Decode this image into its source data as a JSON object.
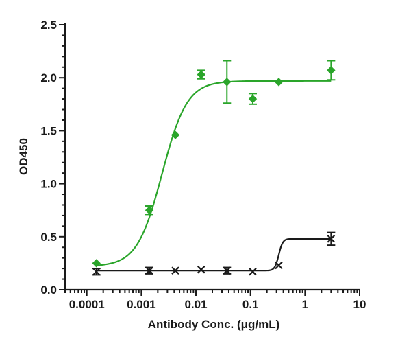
{
  "chart_data": {
    "type": "scatter",
    "xlabel": "Antibody Conc. (μg/mL)",
    "ylabel": "OD450",
    "xscale": "log",
    "xlim": [
      4e-05,
      10
    ],
    "ylim": [
      0,
      2.5
    ],
    "x_ticks": [
      0.0001,
      0.001,
      0.01,
      0.1,
      1,
      10
    ],
    "x_tick_labels": [
      "0.0001",
      "0.001",
      "0.01",
      "0.1",
      "1",
      "10"
    ],
    "y_ticks": [
      0,
      0.5,
      1.0,
      1.5,
      2.0,
      2.5
    ],
    "y_tick_labels": [
      "0.0",
      "0.5",
      "1.0",
      "1.5",
      "2.0",
      "2.5"
    ],
    "grid": false,
    "legend": "none",
    "series": [
      {
        "color": "#2aa52a",
        "marker": "diamond",
        "fit": "sigmoid",
        "fit_params": {
          "bottom": 0.22,
          "top": 1.97,
          "ec50": 0.0024,
          "hill": 1.9
        },
        "points": [
          {
            "x": 0.00015,
            "y": 0.25,
            "err": 0.0
          },
          {
            "x": 0.0014,
            "y": 0.75,
            "err": 0.04
          },
          {
            "x": 0.0042,
            "y": 1.46,
            "err": 0.0
          },
          {
            "x": 0.0125,
            "y": 2.03,
            "err": 0.04
          },
          {
            "x": 0.037,
            "y": 1.96,
            "err": 0.2
          },
          {
            "x": 0.11,
            "y": 1.8,
            "err": 0.05
          },
          {
            "x": 0.33,
            "y": 1.96,
            "err": 0.0
          },
          {
            "x": 3.0,
            "y": 2.07,
            "err": 0.09
          }
        ]
      },
      {
        "color": "#1a1a1a",
        "marker": "x",
        "fit": "sigmoid",
        "fit_params": {
          "bottom": 0.18,
          "top": 0.48,
          "ec50": 0.33,
          "hill": 12
        },
        "points": [
          {
            "x": 0.00015,
            "y": 0.17,
            "err": 0.03
          },
          {
            "x": 0.0014,
            "y": 0.18,
            "err": 0.03
          },
          {
            "x": 0.0042,
            "y": 0.18,
            "err": 0.0
          },
          {
            "x": 0.0125,
            "y": 0.19,
            "err": 0.0
          },
          {
            "x": 0.037,
            "y": 0.18,
            "err": 0.03
          },
          {
            "x": 0.11,
            "y": 0.17,
            "err": 0.0
          },
          {
            "x": 0.33,
            "y": 0.23,
            "err": 0.0
          },
          {
            "x": 3.0,
            "y": 0.48,
            "err": 0.06
          }
        ]
      }
    ]
  }
}
